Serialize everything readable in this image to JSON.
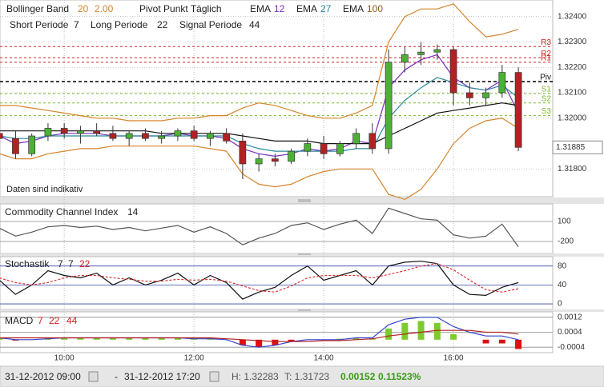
{
  "chart_data": [
    {
      "type": "candlestick",
      "legend_row1": [
        "Bollinger Band",
        "20",
        "2.00",
        "Pivot Punkt Täglich",
        "EMA",
        "12",
        "EMA",
        "27",
        "EMA",
        "100"
      ],
      "legend_row2": [
        "Short Periode",
        "7",
        "Long Periode",
        "22",
        "Signal Periode",
        "44"
      ],
      "annotation": "Daten sind indikativ",
      "xlim": [
        9.01,
        17.53
      ],
      "xticks": [
        {
          "value": 10,
          "label": "10:00"
        },
        {
          "value": 12,
          "label": "12:00"
        },
        {
          "value": 14,
          "label": "14:00"
        },
        {
          "value": 16,
          "label": "16:00"
        }
      ],
      "ylim": [
        1.31694,
        1.32462
      ],
      "yticks": [
        {
          "value": 1.318,
          "label": "1.31800"
        },
        {
          "value": 1.32,
          "label": "1.32000"
        },
        {
          "value": 1.321,
          "label": "1.32100"
        },
        {
          "value": 1.322,
          "label": "1.32200"
        },
        {
          "value": 1.323,
          "label": "1.32300"
        },
        {
          "value": 1.324,
          "label": "1.32400"
        }
      ],
      "grid": true,
      "up_color": "#4cb233",
      "down_color": "#b22222",
      "x": [
        9,
        9.25,
        9.5,
        9.75,
        10,
        10.25,
        10.5,
        10.75,
        11,
        11.25,
        11.5,
        11.75,
        12,
        12.25,
        12.5,
        12.75,
        13,
        13.25,
        13.5,
        13.75,
        14,
        14.25,
        14.5,
        14.75,
        15,
        15.25,
        15.5,
        15.75,
        16,
        16.25,
        16.5,
        16.75,
        17
      ],
      "open": [
        1.3194,
        1.3192,
        1.3186,
        1.3193,
        1.3196,
        1.3194,
        1.3195,
        1.3194,
        1.3192,
        1.3194,
        1.3192,
        1.3193,
        1.3195,
        1.3192,
        1.3194,
        1.3191,
        1.3182,
        1.3184,
        1.3183,
        1.3187,
        1.319,
        1.3186,
        1.319,
        1.3194,
        1.3188,
        1.3222,
        1.3225,
        1.3226,
        1.3227,
        1.321,
        1.3208,
        1.321,
        1.3218
      ],
      "high": [
        1.3197,
        1.3195,
        1.3194,
        1.3198,
        1.3198,
        1.3197,
        1.3198,
        1.3197,
        1.3195,
        1.3196,
        1.3195,
        1.3196,
        1.3197,
        1.3195,
        1.3196,
        1.3194,
        1.3186,
        1.3186,
        1.3188,
        1.3192,
        1.3193,
        1.3191,
        1.3196,
        1.3198,
        1.3227,
        1.3228,
        1.323,
        1.3229,
        1.3228,
        1.3214,
        1.3212,
        1.3221,
        1.322
      ],
      "low": [
        1.319,
        1.3184,
        1.3185,
        1.3191,
        1.3192,
        1.319,
        1.3193,
        1.3191,
        1.3189,
        1.3191,
        1.319,
        1.3191,
        1.3191,
        1.3189,
        1.319,
        1.3176,
        1.3179,
        1.3181,
        1.3182,
        1.3185,
        1.3184,
        1.3185,
        1.3188,
        1.3186,
        1.3186,
        1.3218,
        1.3221,
        1.3223,
        1.3205,
        1.3205,
        1.3205,
        1.3208,
        1.3187
      ],
      "close": [
        1.3192,
        1.3186,
        1.3193,
        1.3196,
        1.3194,
        1.3195,
        1.3194,
        1.3192,
        1.3194,
        1.3192,
        1.3193,
        1.3195,
        1.3192,
        1.3194,
        1.3191,
        1.3182,
        1.3184,
        1.3183,
        1.3187,
        1.319,
        1.3186,
        1.319,
        1.3194,
        1.3188,
        1.3222,
        1.3225,
        1.3226,
        1.3227,
        1.321,
        1.3208,
        1.321,
        1.3218,
        1.31885
      ],
      "series": [
        {
          "color": "#d4852c",
          "values": [
            1.3205,
            1.3205,
            1.3204,
            1.3203,
            1.3202,
            1.3201,
            1.32,
            1.32,
            1.3199,
            1.3199,
            1.3199,
            1.32,
            1.32,
            1.3201,
            1.3201,
            1.3204,
            1.3206,
            1.3205,
            1.3203,
            1.3201,
            1.32,
            1.32,
            1.3202,
            1.3205,
            1.323,
            1.324,
            1.3243,
            1.3243,
            1.3245,
            1.3238,
            1.3232,
            1.3233,
            1.3235
          ]
        },
        {
          "color": "#d4852c",
          "values": [
            1.3186,
            1.3184,
            1.3184,
            1.3186,
            1.3187,
            1.3188,
            1.3188,
            1.3189,
            1.3189,
            1.3189,
            1.3189,
            1.3189,
            1.3189,
            1.3188,
            1.3187,
            1.3178,
            1.3174,
            1.3173,
            1.3174,
            1.3177,
            1.3179,
            1.318,
            1.318,
            1.318,
            1.317,
            1.3168,
            1.3172,
            1.318,
            1.319,
            1.3196,
            1.3199,
            1.32,
            1.3196
          ]
        },
        {
          "color": "#7b2fbe",
          "values": [
            1.3193,
            1.319,
            1.3191,
            1.3193,
            1.3194,
            1.3194,
            1.3194,
            1.3193,
            1.3193,
            1.3193,
            1.3193,
            1.3194,
            1.3193,
            1.3193,
            1.3192,
            1.3188,
            1.3186,
            1.3185,
            1.3186,
            1.3188,
            1.3187,
            1.3188,
            1.3191,
            1.319,
            1.3212,
            1.3219,
            1.3223,
            1.3225,
            1.3216,
            1.3212,
            1.3211,
            1.3215,
            1.3202
          ]
        },
        {
          "color": "#2a8a9a",
          "values": [
            1.3193,
            1.3192,
            1.3192,
            1.3193,
            1.3193,
            1.3193,
            1.3193,
            1.3193,
            1.3193,
            1.3193,
            1.3193,
            1.3193,
            1.3193,
            1.3193,
            1.3193,
            1.319,
            1.3188,
            1.3187,
            1.3187,
            1.3187,
            1.3187,
            1.3187,
            1.3188,
            1.3188,
            1.32,
            1.3207,
            1.3212,
            1.3216,
            1.3214,
            1.3212,
            1.3211,
            1.3213,
            1.3208
          ]
        },
        {
          "color": "#111111",
          "values": [
            1.3195,
            1.3195,
            1.3195,
            1.3195,
            1.3195,
            1.3195,
            1.3195,
            1.3195,
            1.3195,
            1.3195,
            1.3194,
            1.3194,
            1.3194,
            1.3194,
            1.3194,
            1.3193,
            1.3192,
            1.3191,
            1.3191,
            1.3191,
            1.319,
            1.319,
            1.319,
            1.319,
            1.3193,
            1.3196,
            1.3199,
            1.3202,
            1.3203,
            1.3204,
            1.3205,
            1.3206,
            1.3205
          ]
        }
      ],
      "pivots": [
        {
          "label": "R3",
          "value": 1.32282,
          "color": "#cc2222"
        },
        {
          "label": "R2",
          "value": 1.32238,
          "color": "#cc2222"
        },
        {
          "label": "R1",
          "value": 1.3222,
          "color": "#cc2222"
        },
        {
          "label": "Piv",
          "value": 1.32144,
          "color": "#111111"
        },
        {
          "label": "S1",
          "value": 1.32097,
          "color": "#7cb82f"
        },
        {
          "label": "S2",
          "value": 1.3206,
          "color": "#7cb82f"
        },
        {
          "label": "S3",
          "value": 1.3201,
          "color": "#7cb82f"
        }
      ],
      "last_price": 1.31885
    },
    {
      "type": "line",
      "title": "Commodity Channel Index",
      "params": [
        "14"
      ],
      "ylim": [
        -368,
        352
      ],
      "yticks": [
        -200,
        100
      ],
      "series": [
        {
          "color": "#555555",
          "values": [
            0,
            -120,
            -60,
            20,
            40,
            10,
            30,
            -20,
            10,
            -40,
            0,
            40,
            -60,
            20,
            -80,
            -250,
            -150,
            -80,
            40,
            80,
            -20,
            60,
            120,
            -80,
            300,
            220,
            140,
            120,
            -100,
            -150,
            -120,
            60,
            -280
          ]
        }
      ]
    },
    {
      "type": "line",
      "title": "Stochastik",
      "params": [
        "7",
        "7",
        "22"
      ],
      "ylim": [
        -10,
        98
      ],
      "yticks": [
        0,
        40,
        80
      ],
      "series": [
        {
          "color": "#111111",
          "values": [
            50,
            20,
            40,
            70,
            60,
            55,
            65,
            40,
            55,
            40,
            50,
            65,
            40,
            60,
            45,
            10,
            25,
            35,
            60,
            80,
            50,
            60,
            70,
            40,
            80,
            88,
            90,
            85,
            40,
            20,
            18,
            35,
            45
          ]
        },
        {
          "color": "#dd3333",
          "values": [
            55,
            45,
            40,
            45,
            55,
            60,
            60,
            55,
            52,
            48,
            48,
            52,
            50,
            52,
            48,
            38,
            28,
            25,
            38,
            55,
            60,
            60,
            60,
            55,
            62,
            70,
            80,
            85,
            72,
            50,
            30,
            25,
            32
          ]
        }
      ]
    },
    {
      "type": "macd",
      "title": "MACD",
      "params": [
        "7",
        "22",
        "44"
      ],
      "ylim": [
        -0.00065,
        0.00145
      ],
      "yticks": [
        -0.0004,
        0.0004,
        0.0012
      ],
      "histogram": [
        0.0001,
        -5e-05,
        0,
        0.0001,
        0.0001,
        0.0001,
        0.0001,
        0.0001,
        0.0001,
        0.0001,
        0.0001,
        0.0001,
        5e-05,
        0.0001,
        0,
        -0.0003,
        -0.0004,
        -0.0003,
        -0.0001,
        0,
        0,
        5e-05,
        0.0001,
        5e-05,
        0.0006,
        0.0009,
        0.001,
        0.0009,
        0.0003,
        0,
        -0.0002,
        -0.0002,
        -0.0005
      ],
      "up_color": "#7ccc2a",
      "down_color": "#dd1111",
      "series": [
        {
          "color": "#3344cc",
          "values": [
            0.0001,
            0,
            0,
            5e-05,
            0.0001,
            0.0001,
            0.0001,
            0.0001,
            0.0001,
            0.0001,
            0.0001,
            0.0001,
            5e-05,
            5e-05,
            0,
            -0.0003,
            -0.0004,
            -0.0003,
            -0.0001,
            0,
            0,
            0,
            0.0001,
            0.0001,
            0.0008,
            0.0011,
            0.0012,
            0.0012,
            0.0007,
            0.0004,
            0.0002,
            0.0002,
            0
          ]
        },
        {
          "color": "#b22222",
          "values": [
            0.0001,
            0.0001,
            0.0001,
            0.0001,
            0.0001,
            0.0001,
            0.0001,
            0.0001,
            0.0001,
            0.0001,
            0.0001,
            0.0001,
            0.0001,
            0.0001,
            5e-05,
            0,
            -5e-05,
            -0.0001,
            -0.0001,
            -0.0001,
            -5e-05,
            -5e-05,
            0,
            5e-05,
            0.0002,
            0.0003,
            0.0004,
            0.0005,
            0.0005,
            0.0005,
            0.0004,
            0.0004,
            0.0003
          ]
        }
      ]
    }
  ],
  "footer": {
    "start": "31-12-2012 09:00",
    "dash": "-",
    "end": "31-12-2012 17:20",
    "high": "H: 1.32283",
    "low": "T: 1.31723",
    "change": "0.00152",
    "change_pct": "0.11523%"
  }
}
